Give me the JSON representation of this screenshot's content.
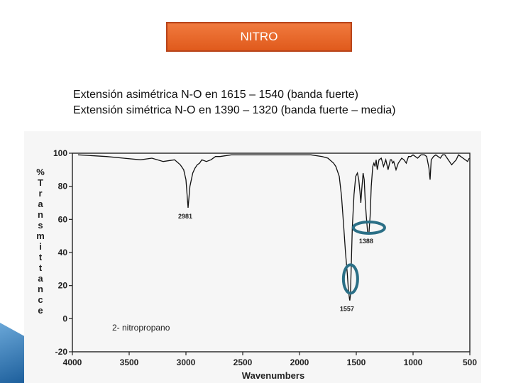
{
  "slide": {
    "title": "NITRO",
    "lines": [
      "Extensión asimétrica N-O en 1615 – 1540 (banda fuerte)",
      "Extensión simétrica N-O en 1390 – 1320 (banda fuerte – media)"
    ]
  },
  "chart_data": {
    "type": "line",
    "xlabel": "Wavenumbers",
    "ylabel": "% Transmittance",
    "ylabel_letters": [
      "%",
      "T",
      "r",
      "a",
      "n",
      "s",
      "m",
      "i",
      "t",
      "t",
      "a",
      "n",
      "c",
      "e"
    ],
    "xlim": [
      4000,
      500
    ],
    "ylim": [
      -20,
      100
    ],
    "x_ticks": [
      4000,
      3500,
      3000,
      2500,
      2000,
      1500,
      1000,
      500
    ],
    "y_ticks": [
      100,
      80,
      60,
      40,
      20,
      0,
      -20
    ],
    "annotation": "2- nitropropano",
    "peak_labels": [
      {
        "x": 2981,
        "y": 67,
        "label": "2981"
      },
      {
        "x": 1557,
        "y": 11,
        "label": "1557"
      },
      {
        "x": 1388,
        "y": 52,
        "label": "1388"
      }
    ],
    "highlights": [
      {
        "x": 1557,
        "y": 24,
        "color": "#2b6f86"
      },
      {
        "x": 1388,
        "y": 55,
        "color": "#2b6f86"
      }
    ],
    "series": [
      {
        "x": [
          3950,
          3700,
          3550,
          3400,
          3300,
          3200,
          3100,
          3050,
          3020,
          3000,
          2981,
          2965,
          2940,
          2920,
          2900,
          2880,
          2860,
          2820,
          2780,
          2740,
          2700,
          2600,
          2500,
          2300,
          2100,
          2000,
          1900,
          1800,
          1750,
          1700,
          1680,
          1650,
          1630,
          1610,
          1595,
          1580,
          1570,
          1560,
          1557,
          1552,
          1545,
          1535,
          1520,
          1505,
          1490,
          1478,
          1468,
          1460,
          1452,
          1440,
          1430,
          1422,
          1412,
          1400,
          1388,
          1378,
          1368,
          1355,
          1345,
          1335,
          1325,
          1315,
          1300,
          1280,
          1260,
          1240,
          1220,
          1200,
          1190,
          1180,
          1170,
          1150,
          1130,
          1100,
          1080,
          1060,
          1040,
          1020,
          1000,
          960,
          930,
          900,
          880,
          860,
          850,
          840,
          820,
          800,
          760,
          740,
          720,
          690,
          660,
          620,
          600,
          560,
          520,
          505
        ],
        "y": [
          99,
          98,
          97,
          96,
          97,
          95,
          96,
          93,
          90,
          84,
          67,
          80,
          88,
          91,
          93,
          94,
          96,
          95,
          96,
          98,
          98,
          99,
          99,
          99,
          99,
          99,
          99,
          98,
          97,
          94,
          92,
          86,
          74,
          55,
          40,
          28,
          18,
          12,
          11,
          14,
          30,
          55,
          75,
          86,
          88,
          84,
          77,
          70,
          78,
          88,
          84,
          72,
          62,
          52,
          52,
          62,
          80,
          92,
          94,
          92,
          96,
          90,
          96,
          97,
          92,
          96,
          90,
          96,
          96,
          94,
          95,
          90,
          94,
          97,
          96,
          94,
          98,
          98,
          99,
          97,
          99,
          99,
          98,
          91,
          84,
          96,
          98,
          99,
          97,
          99,
          99,
          96,
          93,
          96,
          99,
          97,
          95,
          97
        ]
      }
    ]
  }
}
